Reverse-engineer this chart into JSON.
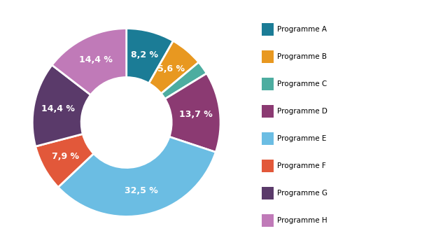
{
  "values": [
    8.2,
    5.6,
    2.3,
    13.7,
    32.5,
    7.9,
    14.4,
    14.4
  ],
  "colors": [
    "#1B7C96",
    "#E89820",
    "#4DADA0",
    "#8B3A72",
    "#6BBDE3",
    "#E2583A",
    "#5A3A6A",
    "#C07AB8"
  ],
  "labels_on_pie": [
    "8,2 %",
    "5,6 %",
    "",
    "13,7 %",
    "32,5 %",
    "7,9 %",
    "14,4 %",
    "14,4 %"
  ],
  "legend_colors": [
    "#1B7C96",
    "#E89820",
    "#4DADA0",
    "#8B3A72",
    "#6BBDE3",
    "#E2583A",
    "#5A3A6A",
    "#C07AB8"
  ],
  "legend_labels": [
    "Programme A",
    "Programme B",
    "Programme C",
    "Programme D",
    "Programme E",
    "Programme F",
    "Programme G",
    "Programme H"
  ],
  "bg_color": "#ffffff",
  "wedge_linewidth": 2.0,
  "wedge_linecolor": "white",
  "label_fontsize": 9,
  "label_fontweight": "bold",
  "label_color": "white",
  "legend_fontsize": 7.5
}
